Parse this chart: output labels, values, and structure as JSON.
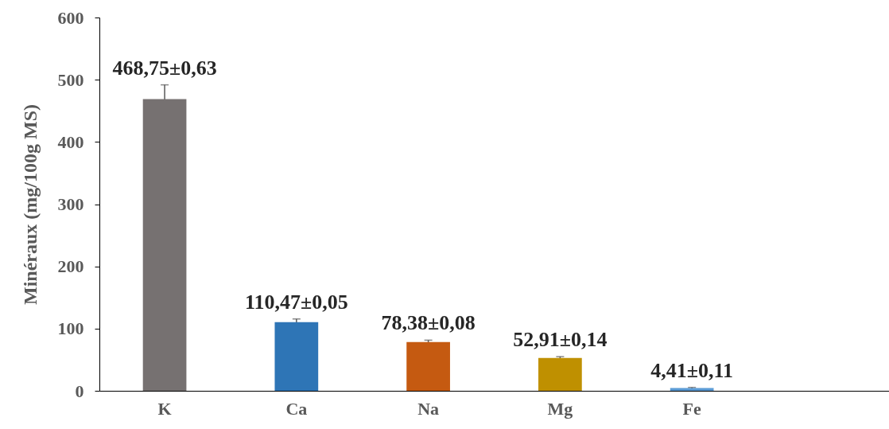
{
  "chart_data": {
    "type": "bar",
    "ylabel": "Minéraux  (mg/100g MS)",
    "categories": [
      "K",
      "Ca",
      "Na",
      "Mg",
      "Fe",
      null
    ],
    "values": [
      468.75,
      110.47,
      78.38,
      52.91,
      4.41,
      null
    ],
    "colors": [
      "#767171",
      "#2e75b6",
      "#c55a11",
      "#bf9000",
      "#5b9bd5",
      null
    ],
    "errors": [
      23,
      5,
      3,
      2,
      1,
      null
    ],
    "value_labels": [
      "468,75±0,63",
      "110,47±0,05",
      "78,38±0,08",
      "52,91±0,14",
      "4,41±0,11",
      null
    ],
    "ylim": [
      0,
      600
    ],
    "yticks": [
      0,
      100,
      200,
      300,
      400,
      500,
      600
    ],
    "grid": false
  }
}
